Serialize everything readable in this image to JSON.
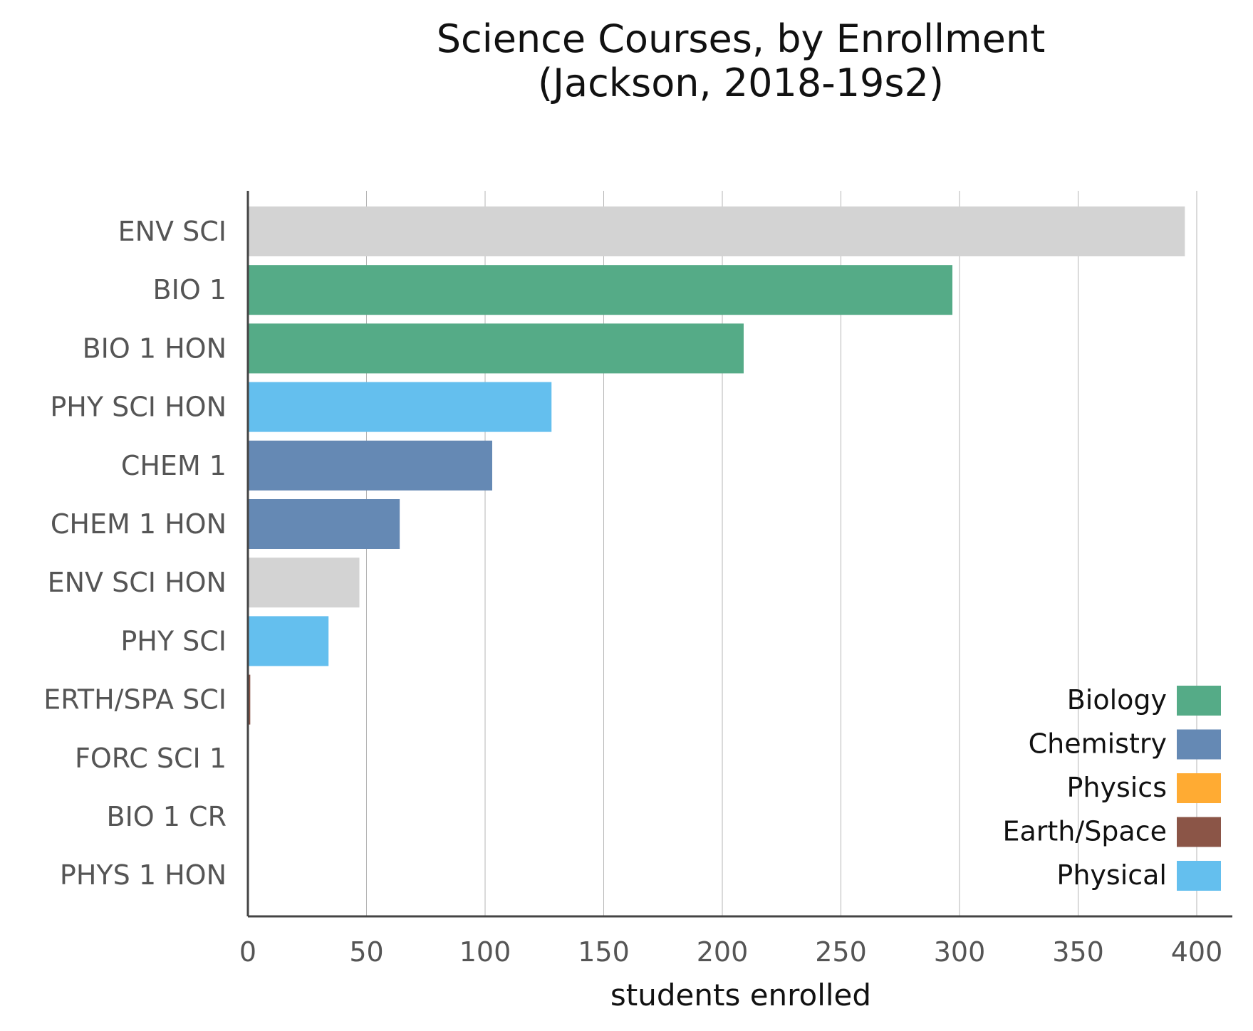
{
  "chart_data": {
    "type": "bar",
    "orientation": "horizontal",
    "title_line1": "Science Courses, by Enrollment",
    "title_line2": "(Jackson, 2018-19s2)",
    "xlabel": "students enrolled",
    "ylabel": "",
    "xlim": [
      0,
      410
    ],
    "xticks": [
      0,
      50,
      100,
      150,
      200,
      250,
      300,
      350,
      400
    ],
    "grid": "vertical",
    "legend_position": "bottom-right",
    "categories": [
      "ENV SCI",
      "BIO 1",
      "BIO 1 HON",
      "PHY SCI HON",
      "CHEM 1",
      "CHEM 1 HON",
      "ENV SCI HON",
      "PHY SCI",
      "ERTH/SPA SCI",
      "FORC SCI 1",
      "BIO 1 CR",
      "PHYS 1 HON"
    ],
    "values": [
      395,
      297,
      209,
      128,
      103,
      64,
      47,
      34,
      1,
      0,
      0,
      0
    ],
    "bar_colors": [
      "#d3d3d3",
      "#55ab87",
      "#55ab87",
      "#64bfee",
      "#6589b4",
      "#6589b4",
      "#d3d3d3",
      "#64bfee",
      "#8b5547",
      "#d3d3d3",
      "#55ab87",
      "#ffab33"
    ],
    "legend": [
      {
        "label": "Biology",
        "color": "#55ab87"
      },
      {
        "label": "Chemistry",
        "color": "#6589b4"
      },
      {
        "label": "Physics",
        "color": "#ffab33"
      },
      {
        "label": "Earth/Space",
        "color": "#8b5547"
      },
      {
        "label": "Physical",
        "color": "#64bfee"
      }
    ]
  }
}
